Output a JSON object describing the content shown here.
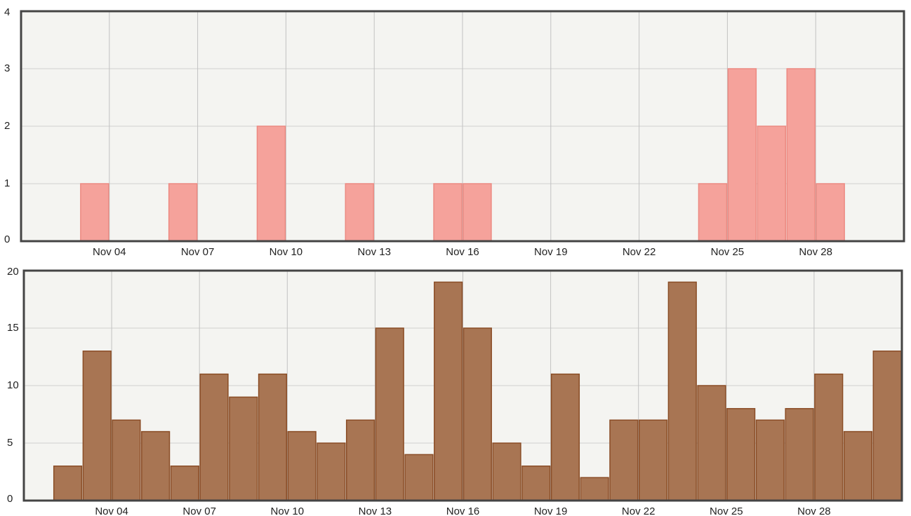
{
  "chart_data": [
    {
      "type": "bar",
      "color": "#f5a29b",
      "edge": "#ec8a82",
      "x": [
        1,
        2,
        3,
        4,
        5,
        6,
        7,
        8,
        9,
        10,
        11,
        12,
        13,
        14,
        15,
        16,
        17,
        18,
        19,
        20,
        21,
        22,
        23,
        24,
        25,
        26,
        27,
        28,
        29,
        30
      ],
      "values": [
        0,
        0,
        1,
        0,
        0,
        1,
        0,
        0,
        2,
        0,
        0,
        1,
        0,
        0,
        1,
        1,
        0,
        0,
        0,
        0,
        0,
        0,
        0,
        1,
        3,
        2,
        3,
        1,
        0,
        0
      ],
      "xlim": [
        1,
        31
      ],
      "xticks": [
        {
          "value": 4,
          "label": "Nov 04"
        },
        {
          "value": 7,
          "label": "Nov 07"
        },
        {
          "value": 10,
          "label": "Nov 10"
        },
        {
          "value": 13,
          "label": "Nov 13"
        },
        {
          "value": 16,
          "label": "Nov 16"
        },
        {
          "value": 19,
          "label": "Nov 19"
        },
        {
          "value": 22,
          "label": "Nov 22"
        },
        {
          "value": 25,
          "label": "Nov 25"
        },
        {
          "value": 28,
          "label": "Nov 28"
        }
      ],
      "ylim": [
        0,
        4
      ],
      "yticks": [
        0,
        1,
        2,
        3,
        4
      ],
      "grid": true
    },
    {
      "type": "bar",
      "color": "#a87553",
      "edge": "#8a4d26",
      "x": [
        1,
        2,
        3,
        4,
        5,
        6,
        7,
        8,
        9,
        10,
        11,
        12,
        13,
        14,
        15,
        16,
        17,
        18,
        19,
        20,
        21,
        22,
        23,
        24,
        25,
        26,
        27,
        28,
        29,
        30
      ],
      "values": [
        0,
        3,
        13,
        7,
        6,
        3,
        11,
        9,
        11,
        6,
        5,
        7,
        15,
        4,
        19,
        15,
        5,
        3,
        11,
        2,
        7,
        7,
        19,
        10,
        8,
        7,
        8,
        11,
        6,
        13
      ],
      "xlim": [
        1,
        31
      ],
      "xticks": [
        {
          "value": 4,
          "label": "Nov 04"
        },
        {
          "value": 7,
          "label": "Nov 07"
        },
        {
          "value": 10,
          "label": "Nov 10"
        },
        {
          "value": 13,
          "label": "Nov 13"
        },
        {
          "value": 16,
          "label": "Nov 16"
        },
        {
          "value": 19,
          "label": "Nov 19"
        },
        {
          "value": 22,
          "label": "Nov 22"
        },
        {
          "value": 25,
          "label": "Nov 25"
        },
        {
          "value": 28,
          "label": "Nov 28"
        }
      ],
      "ylim": [
        0,
        20
      ],
      "yticks": [
        0,
        5,
        10,
        15,
        20
      ],
      "grid": true
    }
  ]
}
